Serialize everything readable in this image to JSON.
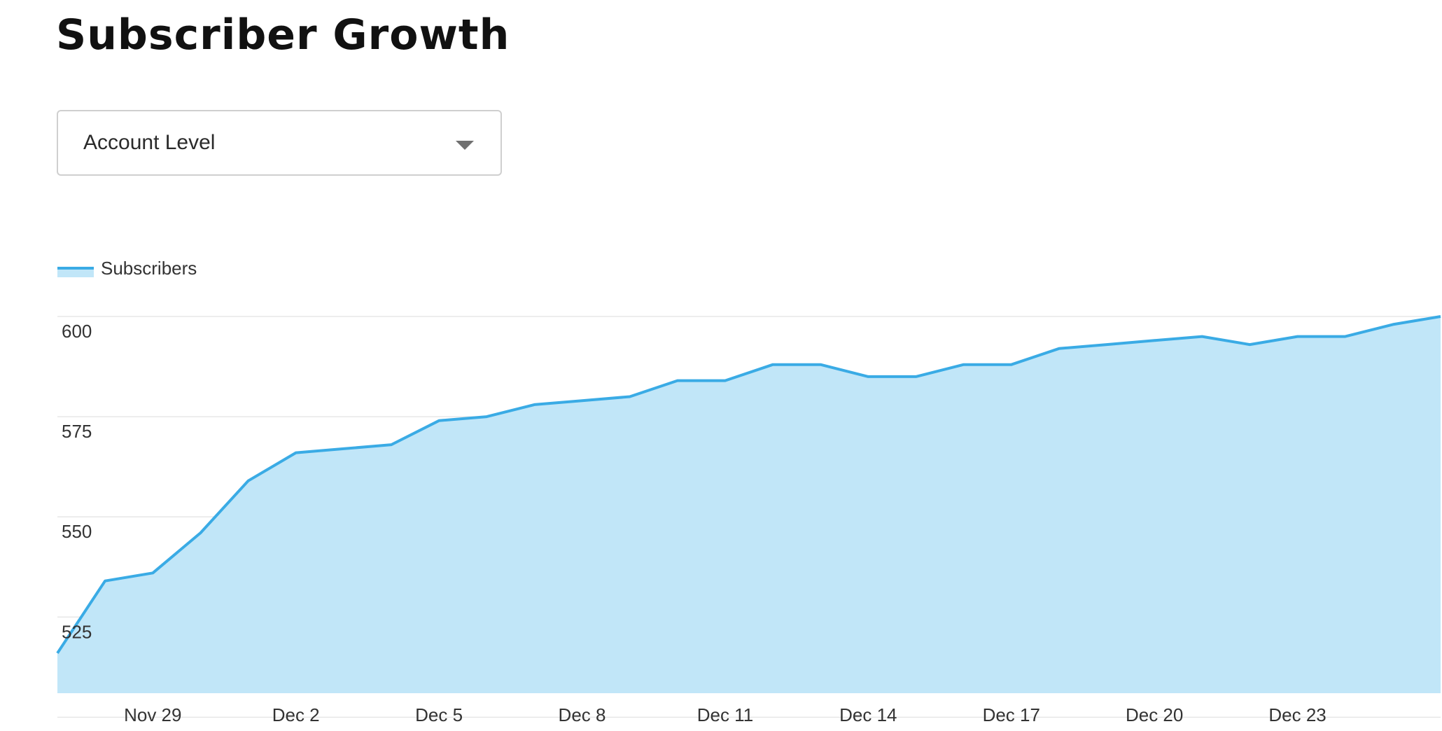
{
  "header": {
    "title": "Subscriber Growth"
  },
  "filter": {
    "selected": "Account Level"
  },
  "colors": {
    "line": "#3aabe5",
    "fill": "#c1e6f8",
    "grid": "#d4d4d4",
    "text": "#333333"
  },
  "chart_data": {
    "type": "area",
    "title": "",
    "xlabel": "",
    "ylabel": "",
    "legend": {
      "position": "top-left",
      "entries": [
        "Subscribers"
      ]
    },
    "grid": true,
    "ylim": [
      506,
      600
    ],
    "yticks": [
      525,
      550,
      575,
      600
    ],
    "xtick_labels": [
      "Nov 29",
      "Dec 2",
      "Dec 5",
      "Dec 8",
      "Dec 11",
      "Dec 14",
      "Dec 17",
      "Dec 20",
      "Dec 23"
    ],
    "x": [
      "Nov 27",
      "Nov 28",
      "Nov 29",
      "Nov 30",
      "Dec 1",
      "Dec 2",
      "Dec 3",
      "Dec 4",
      "Dec 5",
      "Dec 6",
      "Dec 7",
      "Dec 8",
      "Dec 9",
      "Dec 10",
      "Dec 11",
      "Dec 12",
      "Dec 13",
      "Dec 14",
      "Dec 15",
      "Dec 16",
      "Dec 17",
      "Dec 18",
      "Dec 19",
      "Dec 20",
      "Dec 21",
      "Dec 22",
      "Dec 23",
      "Dec 24",
      "Dec 25",
      "Dec 26"
    ],
    "series": [
      {
        "name": "Subscribers",
        "values": [
          516,
          534,
          536,
          546,
          559,
          566,
          567,
          568,
          574,
          575,
          578,
          579,
          580,
          584,
          584,
          588,
          588,
          585,
          585,
          588,
          588,
          592,
          593,
          594,
          595,
          593,
          595,
          595,
          598,
          600
        ]
      }
    ]
  }
}
